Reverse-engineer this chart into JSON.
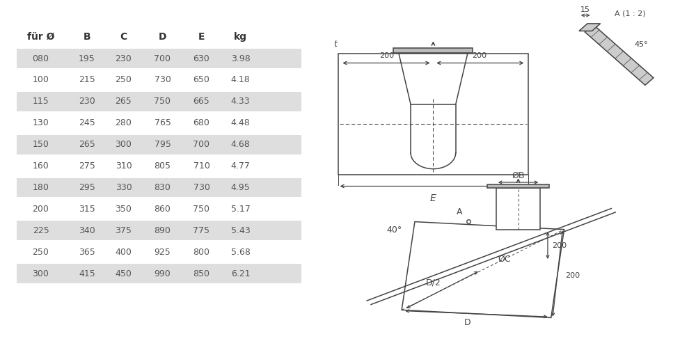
{
  "table_headers": [
    "für Ø",
    "B",
    "C",
    "D",
    "E",
    "kg"
  ],
  "table_rows": [
    [
      "080",
      "195",
      "230",
      "700",
      "630",
      "3.98"
    ],
    [
      "100",
      "215",
      "250",
      "730",
      "650",
      "4.18"
    ],
    [
      "115",
      "230",
      "265",
      "750",
      "665",
      "4.33"
    ],
    [
      "130",
      "245",
      "280",
      "765",
      "680",
      "4.48"
    ],
    [
      "150",
      "265",
      "300",
      "795",
      "700",
      "4.68"
    ],
    [
      "160",
      "275",
      "310",
      "805",
      "710",
      "4.77"
    ],
    [
      "180",
      "295",
      "330",
      "830",
      "730",
      "4.95"
    ],
    [
      "200",
      "315",
      "350",
      "860",
      "750",
      "5.17"
    ],
    [
      "225",
      "340",
      "375",
      "890",
      "775",
      "5.43"
    ],
    [
      "250",
      "365",
      "400",
      "925",
      "800",
      "5.68"
    ],
    [
      "300",
      "415",
      "450",
      "990",
      "850",
      "6.21"
    ]
  ],
  "shaded_rows": [
    0,
    2,
    4,
    6,
    8,
    10
  ],
  "row_bg_shaded": "#dedede",
  "text_color": "#555555",
  "header_text_color": "#333333",
  "bg_color": "#ffffff",
  "line_color": "#444444"
}
